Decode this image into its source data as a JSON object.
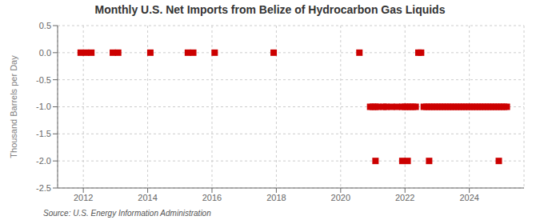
{
  "chart_data": {
    "type": "scatter",
    "title": "Monthly U.S. Net Imports from Belize of Hydrocarbon Gas Liquids",
    "y_label": "Thousand Barrels per Day",
    "annotations": [
      "Source: U.S. Energy Information Administration"
    ],
    "color": "#cc0000",
    "marker": "square",
    "grid": true,
    "xlim": [
      2011.2,
      2025.7
    ],
    "xticks": [
      2012,
      2014,
      2016,
      2018,
      2020,
      2022,
      2024
    ],
    "ylim": [
      -2.5,
      0.5
    ],
    "yticks": [
      0.5,
      {
        "value": 0,
        "label": "0.0"
      },
      -0.5,
      {
        "value": -1,
        "label": "-1.0"
      },
      -1.5,
      {
        "value": -2,
        "label": "-2.0"
      },
      -2.5
    ],
    "x": [
      2011.917,
      2012.083,
      2012.25,
      2012.917,
      2013.083,
      2014.083,
      2015.25,
      2015.417,
      2016.083,
      2017.917,
      2020.583,
      2022.417,
      2022.5,
      2020.917,
      2021.0,
      2021.083,
      2021.167,
      2021.333,
      2021.417,
      2021.583,
      2021.75,
      2021.917,
      2022.0,
      2022.083,
      2022.167,
      2022.25,
      2022.333,
      2022.583,
      2022.667,
      2022.75,
      2022.833,
      2022.917,
      2023.0,
      2023.083,
      2023.167,
      2023.25,
      2023.333,
      2023.417,
      2023.5,
      2023.583,
      2023.667,
      2023.75,
      2023.833,
      2023.917,
      2024.0,
      2024.083,
      2024.167,
      2024.25,
      2024.333,
      2024.417,
      2024.5,
      2024.583,
      2024.667,
      2024.75,
      2024.833,
      2024.917,
      2025.0,
      2025.083,
      2025.167,
      2021.083,
      2021.917,
      2022.083,
      2022.75,
      2024.917
    ],
    "values": [
      0,
      0,
      0,
      0,
      0,
      0,
      0,
      0,
      0,
      0,
      0,
      0,
      0,
      -1,
      -1,
      -1,
      -1,
      -1,
      -1,
      -1,
      -1,
      -1,
      -1,
      -1,
      -1,
      -1,
      -1,
      -1,
      -1,
      -1,
      -1,
      -1,
      -1,
      -1,
      -1,
      -1,
      -1,
      -1,
      -1,
      -1,
      -1,
      -1,
      -1,
      -1,
      -1,
      -1,
      -1,
      -1,
      -1,
      -1,
      -1,
      -1,
      -1,
      -1,
      -1,
      -1,
      -1,
      -1,
      -1,
      -2,
      -2,
      -2,
      -2,
      -2
    ]
  }
}
